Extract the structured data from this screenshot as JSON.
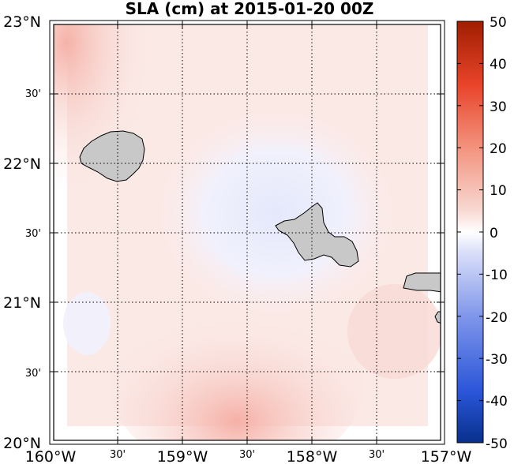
{
  "title": "SLA (cm) at 2015-01-20 00Z",
  "map": {
    "lon_range": [
      -160,
      -157
    ],
    "lat_range": [
      20,
      23
    ],
    "x_labels": [
      "160°W",
      "30'",
      "159°W",
      "30'",
      "158°W",
      "30'",
      "157°W"
    ],
    "y_labels": [
      "23°N",
      "30'",
      "22°N",
      "30'",
      "21°N",
      "30'",
      "20°N"
    ],
    "land_color": "#c8c8c8",
    "islands": [
      "Kauai",
      "Oahu",
      "Molokai",
      "Lanai"
    ]
  },
  "colorbar": {
    "min": -50,
    "max": 50,
    "ticks": [
      "50",
      "40",
      "30",
      "20",
      "10",
      "0",
      "-10",
      "-20",
      "-30",
      "-40",
      "-50"
    ],
    "colors": {
      "low": "#08308c",
      "mid": "#ffffff",
      "high": "#a01e00"
    }
  }
}
